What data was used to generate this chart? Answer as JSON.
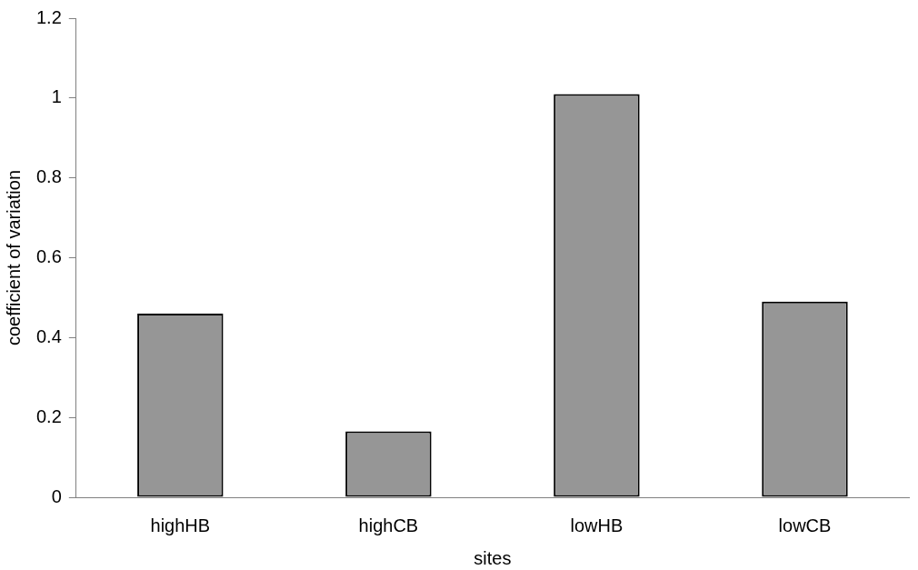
{
  "chart_data": {
    "type": "bar",
    "xlabel": "sites",
    "ylabel": "coefficient of variation",
    "categories": [
      "highHB",
      "highCB",
      "lowHB",
      "lowCB"
    ],
    "values": [
      0.46,
      0.165,
      1.01,
      0.49
    ],
    "color": "#969696",
    "ylim": [
      0,
      1.2
    ],
    "yticks": [
      0,
      0.2,
      0.4,
      0.6,
      0.8,
      1,
      1.2
    ],
    "grid": false,
    "legend": false
  }
}
